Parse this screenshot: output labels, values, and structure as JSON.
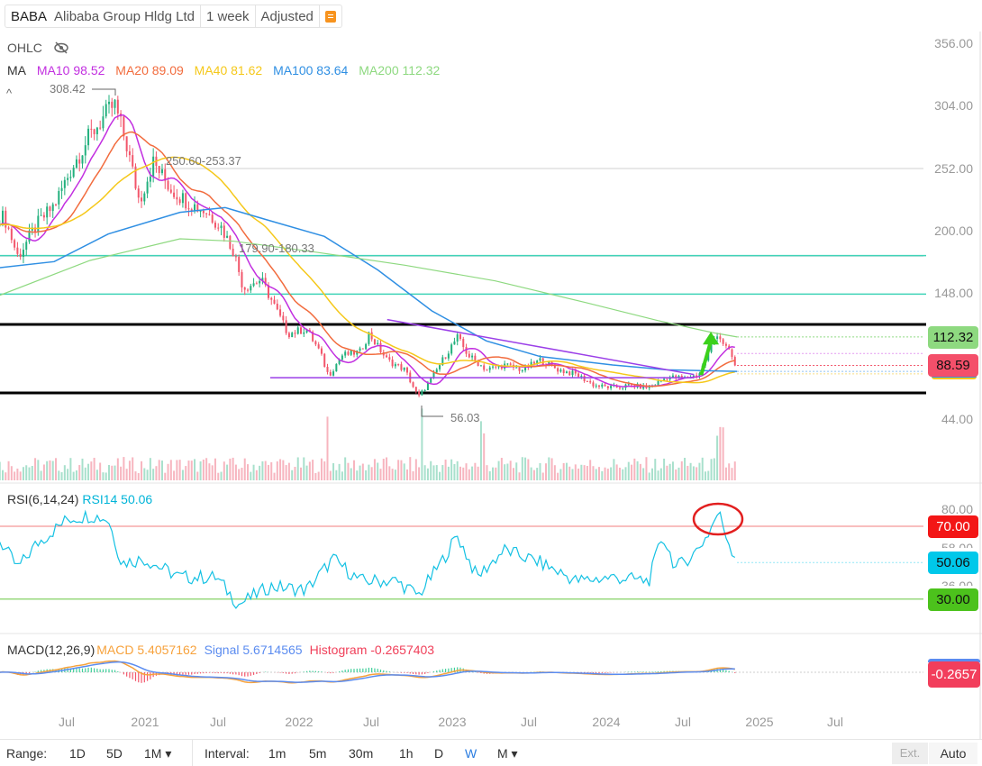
{
  "header": {
    "symbol": "BABA",
    "name": "Alibaba Group Hldg Ltd",
    "interval": "1 week",
    "adjustment": "Adjusted",
    "menu_icon": "orange-list-icon"
  },
  "legend": {
    "ohlc": "OHLC",
    "ohlc_icon": "eye-off-icon",
    "ma": "MA",
    "mas": [
      {
        "label": "MA10 98.52",
        "color": "#c22fe0"
      },
      {
        "label": "MA20 89.09",
        "color": "#f26c3e"
      },
      {
        "label": "MA40 81.62",
        "color": "#f5c81a"
      },
      {
        "label": "MA100 83.64",
        "color": "#2f8fe3"
      },
      {
        "label": "MA200 112.32",
        "color": "#8ed980"
      }
    ]
  },
  "annotations": {
    "high": "308.42",
    "low": "56.03",
    "range1": "250.60-253.37",
    "range2": "179.90-180.33",
    "collapse_icon": "caret-up-icon"
  },
  "price_axis": {
    "ticks": [
      "356.00",
      "304.00",
      "252.00",
      "200.00",
      "148.00",
      "44.00"
    ],
    "tags": [
      {
        "label": "112.32",
        "bg": "#8ed980",
        "fg": "#111"
      },
      {
        "label": "88.59",
        "bg": "#f44f6a",
        "fg": "#111"
      }
    ]
  },
  "rsi": {
    "title": "RSI(6,14,24)",
    "rsi14": "RSI14 50.06",
    "ticks": [
      "80.00",
      "58.00",
      "36.00"
    ],
    "tags": [
      {
        "label": "70.00",
        "bg": "#f31616",
        "fg": "#fff"
      },
      {
        "label": "50.06",
        "bg": "#00c8ea",
        "fg": "#111"
      },
      {
        "label": "30.00",
        "bg": "#4cc21c",
        "fg": "#111"
      }
    ]
  },
  "macd": {
    "title": "MACD(12,26,9)",
    "macd": "MACD 5.4057162",
    "signal": "Signal 5.6714565",
    "histogram": "Histogram -0.2657403",
    "tag": "-0.2657"
  },
  "time_axis": [
    "Jul",
    "2021",
    "Jul",
    "2022",
    "Jul",
    "2023",
    "Jul",
    "2024",
    "Jul",
    "2025",
    "Jul"
  ],
  "footer": {
    "range_label": "Range:",
    "ranges": [
      "1D",
      "5D",
      "1M ▾"
    ],
    "interval_label": "Interval:",
    "intervals": [
      "1m",
      "5m",
      "30m",
      "1h",
      "D",
      "W",
      "M ▾"
    ],
    "active_interval": "W",
    "ext": "Ext.",
    "auto": "Auto"
  },
  "chart_data": {
    "type": "candlestick",
    "ylim": [
      20,
      370
    ],
    "close": [
      [
        "2020-02-05",
        212
      ],
      [
        "2020-03-08",
        179
      ],
      [
        "2020-04-20",
        205
      ],
      [
        "2020-06-02",
        222
      ],
      [
        "2020-07-15",
        254
      ],
      [
        "2020-08-26",
        280
      ],
      [
        "2020-09-27",
        295
      ],
      [
        "2020-10-23",
        306
      ],
      [
        "2020-11-20",
        273
      ],
      [
        "2020-12-21",
        225
      ],
      [
        "2021-01-23",
        258
      ],
      [
        "2021-03-07",
        235
      ],
      [
        "2021-04-18",
        224
      ],
      [
        "2021-05-31",
        216
      ],
      [
        "2021-07-02",
        205
      ],
      [
        "2021-08-03",
        183
      ],
      [
        "2021-08-25",
        153
      ],
      [
        "2021-10-06",
        160
      ],
      [
        "2021-10-28",
        145
      ],
      [
        "2021-12-09",
        115
      ],
      [
        "2022-01-21",
        119
      ],
      [
        "2022-02-22",
        100
      ],
      [
        "2022-03-15",
        80
      ],
      [
        "2022-04-16",
        97
      ],
      [
        "2022-05-29",
        100
      ],
      [
        "2022-06-19",
        115
      ],
      [
        "2022-08-01",
        93
      ],
      [
        "2022-09-12",
        85
      ],
      [
        "2022-10-14",
        62
      ],
      [
        "2022-11-15",
        78
      ],
      [
        "2022-12-17",
        97
      ],
      [
        "2023-01-14",
        112
      ],
      [
        "2023-02-09",
        97
      ],
      [
        "2023-03-24",
        85
      ],
      [
        "2023-05-05",
        89
      ],
      [
        "2023-06-17",
        85
      ],
      [
        "2023-07-30",
        93
      ],
      [
        "2023-09-11",
        85
      ],
      [
        "2023-10-24",
        81
      ],
      [
        "2023-12-05",
        72
      ],
      [
        "2024-01-17",
        70
      ],
      [
        "2024-02-28",
        72
      ],
      [
        "2024-04-12",
        70
      ],
      [
        "2024-05-25",
        79
      ],
      [
        "2024-07-07",
        78
      ],
      [
        "2024-08-08",
        81
      ],
      [
        "2024-08-29",
        97
      ],
      [
        "2024-09-20",
        116
      ],
      [
        "2024-10-11",
        104
      ],
      [
        "2024-11-07",
        88.59
      ]
    ],
    "ma100": [
      [
        "2020-01-25",
        170
      ],
      [
        "2020-06-02",
        175
      ],
      [
        "2020-10-08",
        198
      ],
      [
        "2021-03-28",
        216
      ],
      [
        "2021-07-13",
        220
      ],
      [
        "2021-10-28",
        209
      ],
      [
        "2022-03-05",
        196
      ],
      [
        "2022-07-10",
        168
      ],
      [
        "2022-11-15",
        134
      ],
      [
        "2023-03-24",
        109
      ],
      [
        "2023-07-30",
        96
      ],
      [
        "2024-01-17",
        89
      ],
      [
        "2024-05-25",
        85
      ],
      [
        "2024-11-07",
        83.64
      ]
    ],
    "ma200": [
      [
        "2020-01-25",
        147
      ],
      [
        "2020-08-26",
        176
      ],
      [
        "2021-03-28",
        194
      ],
      [
        "2021-08-03",
        192
      ],
      [
        "2022-02-11",
        183
      ],
      [
        "2022-09-12",
        172
      ],
      [
        "2023-04-14",
        159
      ],
      [
        "2023-11-14",
        141
      ],
      [
        "2024-05-03",
        126
      ],
      [
        "2024-09-09",
        116
      ],
      [
        "2024-11-07",
        112.32
      ]
    ],
    "rsi14": [
      [
        "2020-01-25",
        62
      ],
      [
        "2020-03-08",
        47
      ],
      [
        "2020-04-20",
        60
      ],
      [
        "2020-07-04",
        74
      ],
      [
        "2020-08-26",
        76
      ],
      [
        "2020-10-08",
        74
      ],
      [
        "2020-11-09",
        50
      ],
      [
        "2021-01-02",
        52
      ],
      [
        "2021-03-28",
        42
      ],
      [
        "2021-06-22",
        42
      ],
      [
        "2021-08-14",
        27
      ],
      [
        "2021-10-28",
        37
      ],
      [
        "2022-01-21",
        35
      ],
      [
        "2022-03-26",
        52
      ],
      [
        "2022-05-29",
        40
      ],
      [
        "2022-08-22",
        40
      ],
      [
        "2022-10-14",
        32
      ],
      [
        "2022-12-07",
        50
      ],
      [
        "2023-01-14",
        65
      ],
      [
        "2023-03-02",
        42
      ],
      [
        "2023-05-05",
        57
      ],
      [
        "2023-07-30",
        50
      ],
      [
        "2023-10-24",
        40
      ],
      [
        "2024-01-17",
        42
      ],
      [
        "2024-04-12",
        40
      ],
      [
        "2024-05-14",
        65
      ],
      [
        "2024-06-15",
        47
      ],
      [
        "2024-07-28",
        55
      ],
      [
        "2024-08-29",
        65
      ],
      [
        "2024-09-24",
        78
      ],
      [
        "2024-10-17",
        62
      ],
      [
        "2024-11-07",
        50.06
      ]
    ],
    "rsi_levels": [
      70,
      30
    ],
    "levels": [
      {
        "price": 180,
        "color": "#3fd3b8"
      },
      {
        "price": 148,
        "color": "#3fd3b8"
      },
      {
        "price": 122.7,
        "color": "#000"
      },
      {
        "price": 65.7,
        "color": "#000"
      }
    ],
    "trendlines": [
      {
        "from": [
          "2022-08-01",
          126.8
        ],
        "to": [
          "2024-07-28",
          81
        ],
        "color": "#9b3fe8"
      },
      {
        "from": [
          "2021-10-28",
          78.4
        ],
        "to": [
          "2024-07-28",
          78.4
        ],
        "color": "#9b3fe8"
      }
    ],
    "arrow": {
      "from": [
        "2024-08-14",
        80.6
      ],
      "to": [
        "2024-09-06",
        116.6
      ],
      "color": "#3bd11b"
    }
  }
}
